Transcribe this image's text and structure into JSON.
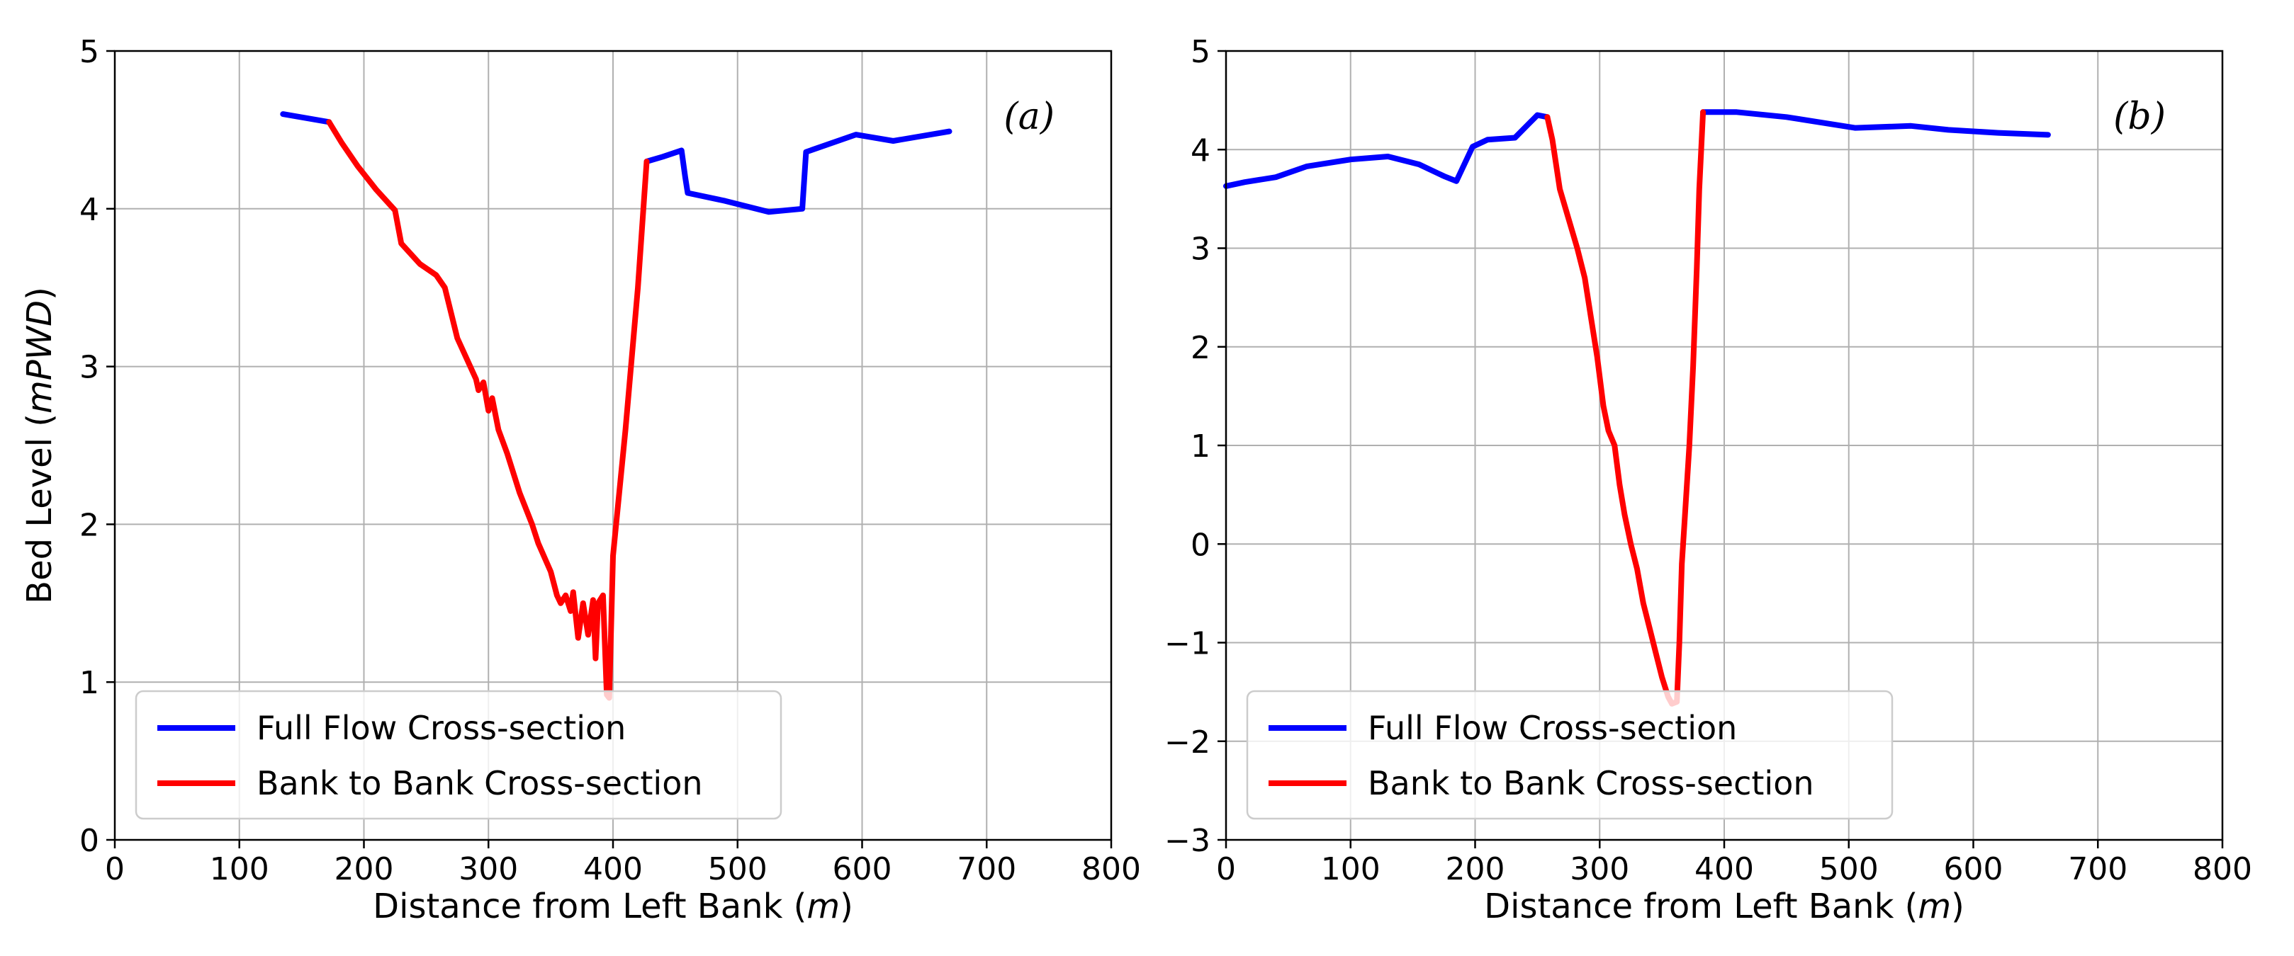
{
  "chart_data": [
    {
      "type": "line",
      "panel_label": "(a)",
      "xlabel": "Distance from Left Bank",
      "xlabel_unit": "m",
      "ylabel": "Bed Level",
      "ylabel_unit": "mPWD",
      "xlim": [
        0,
        800
      ],
      "ylim": [
        0,
        5
      ],
      "xticks": [
        0,
        100,
        200,
        300,
        400,
        500,
        600,
        700,
        800
      ],
      "yticks": [
        0,
        1,
        2,
        3,
        4,
        5
      ],
      "grid": true,
      "legend_position": "lower-left",
      "series": [
        {
          "name": "Full Flow Cross-section",
          "color": "#0000ff",
          "x": [
            135,
            172,
            172,
            427,
            427,
            440,
            455,
            458,
            460,
            490,
            525,
            552,
            555,
            595,
            625,
            670
          ],
          "y": [
            4.6,
            4.55,
            null,
            null,
            4.3,
            4.33,
            4.37,
            4.2,
            4.1,
            4.05,
            3.98,
            4.0,
            4.36,
            4.47,
            4.43,
            4.49
          ]
        },
        {
          "name": "Bank to Bank Cross-section",
          "color": "#ff0000",
          "x": [
            172,
            182,
            195,
            210,
            225,
            230,
            245,
            258,
            265,
            275,
            290,
            292,
            296,
            300,
            303,
            308,
            315,
            325,
            335,
            340,
            350,
            355,
            358,
            362,
            366,
            368,
            372,
            376,
            380,
            384,
            386,
            388,
            392,
            395,
            397,
            400,
            410,
            420,
            427
          ],
          "y": [
            4.55,
            4.42,
            4.27,
            4.12,
            3.99,
            3.78,
            3.65,
            3.58,
            3.5,
            3.18,
            2.92,
            2.85,
            2.9,
            2.72,
            2.8,
            2.6,
            2.45,
            2.2,
            2.0,
            1.88,
            1.7,
            1.55,
            1.5,
            1.55,
            1.45,
            1.57,
            1.28,
            1.5,
            1.3,
            1.52,
            1.15,
            1.5,
            1.55,
            0.92,
            0.9,
            1.8,
            2.6,
            3.5,
            4.3
          ]
        }
      ]
    },
    {
      "type": "line",
      "panel_label": "(b)",
      "xlabel": "Distance from Left Bank",
      "xlabel_unit": "m",
      "ylabel": "",
      "xlim": [
        0,
        800
      ],
      "ylim": [
        -3,
        5
      ],
      "xticks": [
        0,
        100,
        200,
        300,
        400,
        500,
        600,
        700,
        800
      ],
      "yticks": [
        -3,
        -2,
        -1,
        0,
        1,
        2,
        3,
        4,
        5
      ],
      "grid": true,
      "legend_position": "lower-left",
      "series": [
        {
          "name": "Full Flow Cross-section",
          "color": "#0000ff",
          "x": [
            0,
            15,
            40,
            65,
            100,
            130,
            155,
            175,
            185,
            198,
            210,
            232,
            250,
            258,
            258,
            383,
            383,
            410,
            450,
            505,
            550,
            580,
            620,
            660
          ],
          "y": [
            3.63,
            3.67,
            3.72,
            3.83,
            3.9,
            3.93,
            3.85,
            3.73,
            3.68,
            4.03,
            4.1,
            4.12,
            4.35,
            4.33,
            null,
            null,
            4.38,
            4.38,
            4.33,
            4.22,
            4.24,
            4.2,
            4.17,
            4.15
          ],
          "note": "gap between 258 and 383 drawn by red series"
        },
        {
          "name": "Bank to Bank Cross-section",
          "color": "#ff0000",
          "x": [
            258,
            262,
            268,
            275,
            282,
            288,
            293,
            298,
            303,
            307,
            312,
            316,
            320,
            325,
            330,
            335,
            340,
            345,
            350,
            355,
            358,
            362,
            364,
            366,
            368,
            372,
            375,
            378,
            380,
            383
          ],
          "y": [
            4.33,
            4.1,
            3.6,
            3.3,
            3.0,
            2.7,
            2.3,
            1.9,
            1.4,
            1.15,
            1.0,
            0.6,
            0.3,
            0.0,
            -0.25,
            -0.6,
            -0.85,
            -1.1,
            -1.35,
            -1.55,
            -1.62,
            -1.6,
            -1.0,
            -0.2,
            0.2,
            1.0,
            1.8,
            2.8,
            3.6,
            4.38
          ]
        }
      ]
    }
  ]
}
